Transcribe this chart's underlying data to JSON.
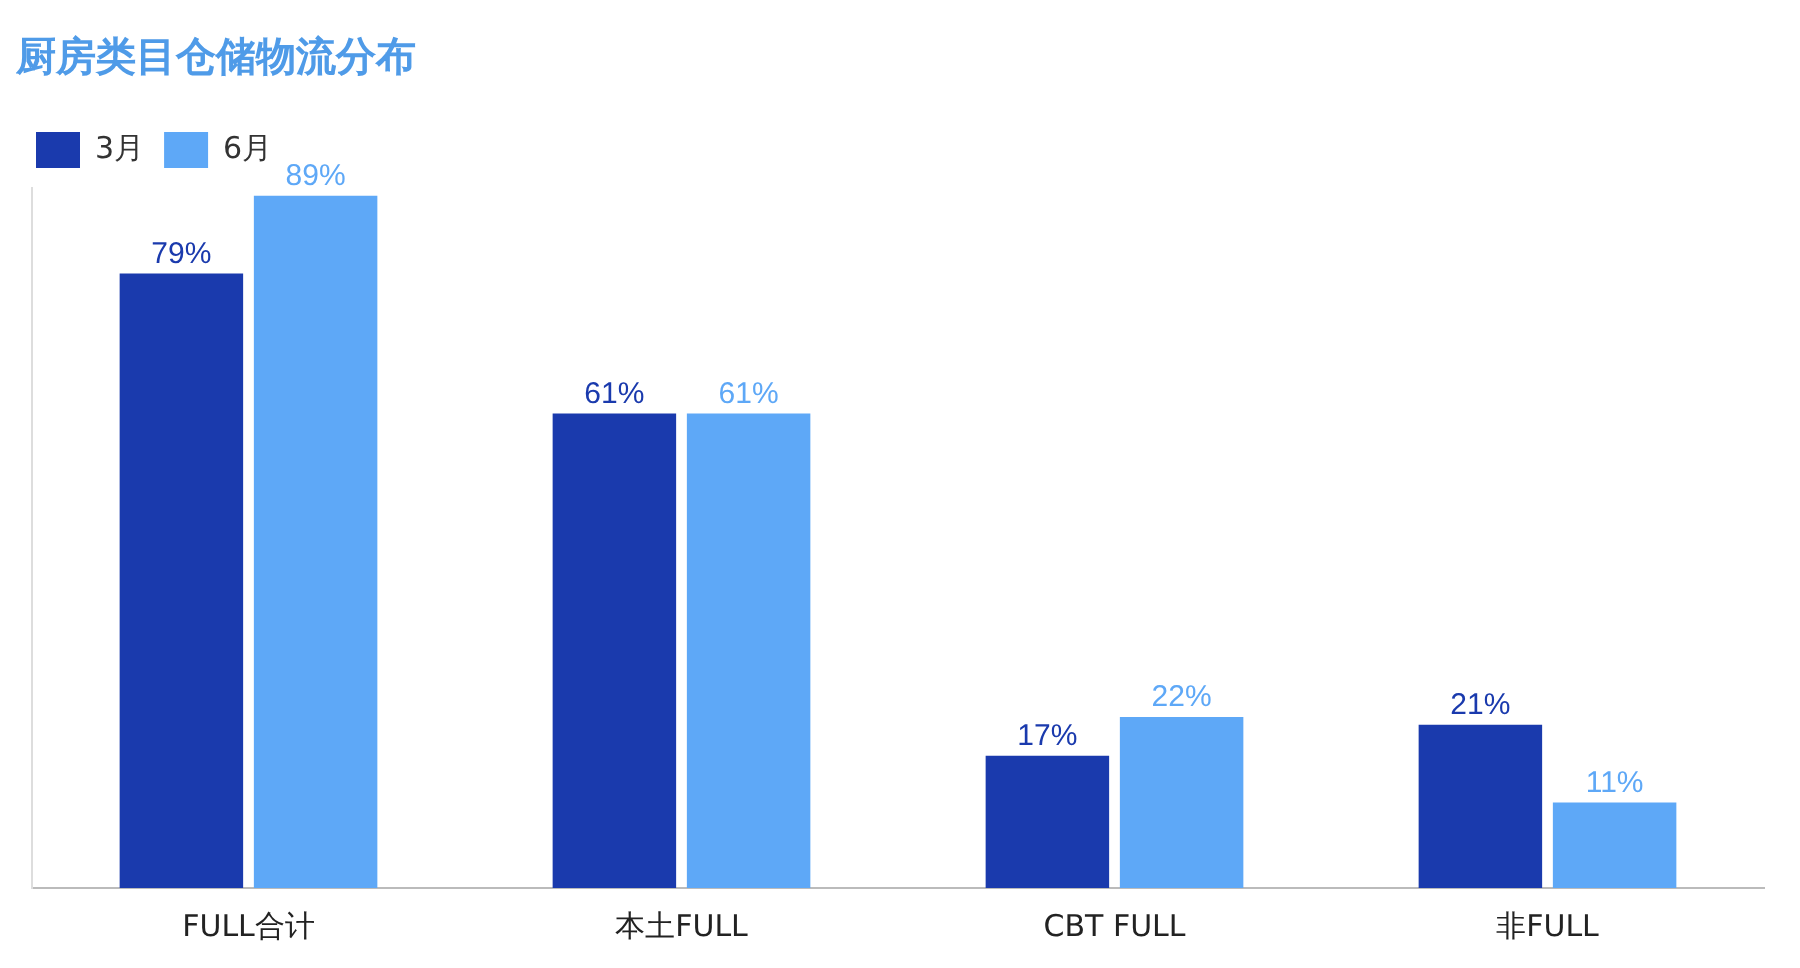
{
  "chart_data": {
    "type": "bar",
    "title": "厨房类目仓储物流分布",
    "categories": [
      "FULL合计",
      "本土FULL",
      "CBT FULL",
      "非FULL"
    ],
    "series": [
      {
        "name": "3月",
        "color": "#1a3aad",
        "values": [
          79,
          61,
          17,
          21
        ],
        "value_labels": [
          "79%",
          "61%",
          "17%",
          "21%"
        ]
      },
      {
        "name": "6月",
        "color": "#5ea8f7",
        "values": [
          89,
          61,
          22,
          11
        ],
        "value_labels": [
          "89%",
          "61%",
          "22%",
          "11%"
        ]
      }
    ],
    "legend": "top left",
    "grid": false
  }
}
